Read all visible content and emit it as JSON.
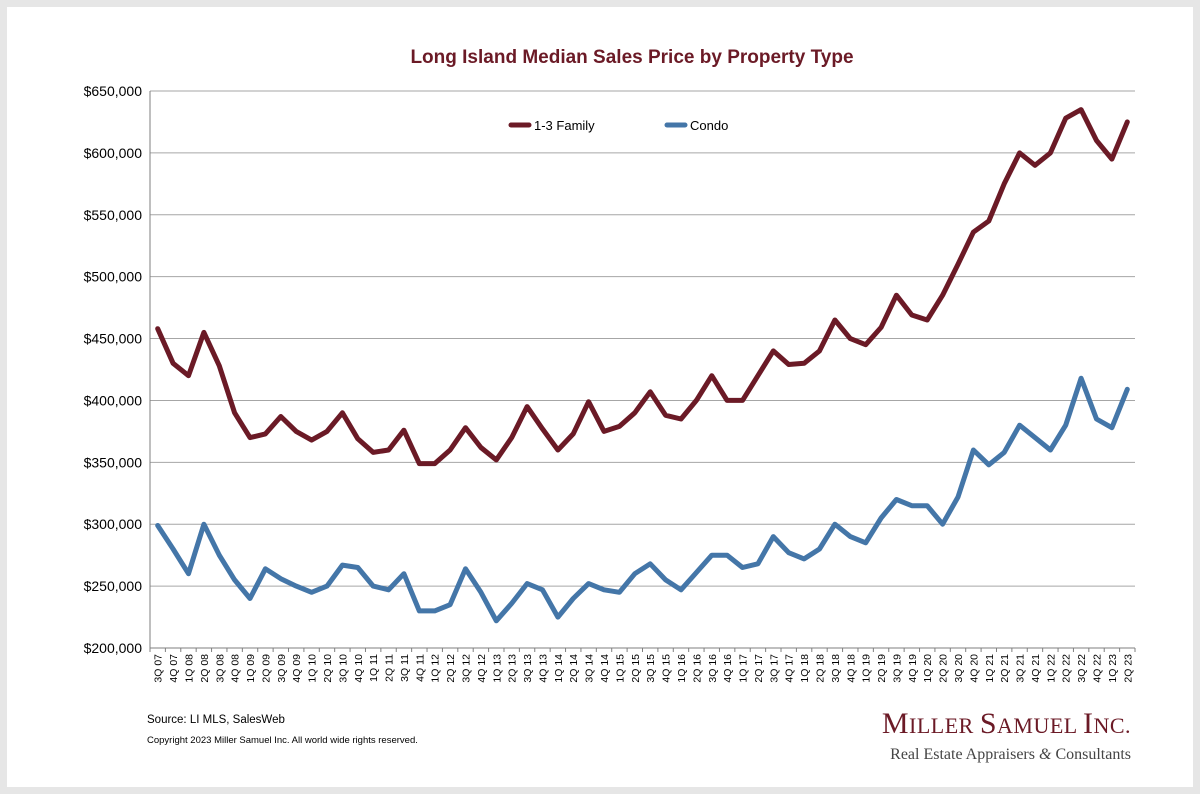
{
  "chart_data": {
    "type": "line",
    "title": "Long Island Median Sales Price by Property Type",
    "ylim": [
      200000,
      650000
    ],
    "yticks": [
      "$200,000",
      "$250,000",
      "$300,000",
      "$350,000",
      "$400,000",
      "$450,000",
      "$500,000",
      "$550,000",
      "$600,000",
      "$650,000"
    ],
    "categories": [
      "3Q 07",
      "4Q 07",
      "1Q 08",
      "2Q 08",
      "3Q 08",
      "4Q 08",
      "1Q 09",
      "2Q 09",
      "3Q 09",
      "4Q 09",
      "1Q 10",
      "2Q 10",
      "3Q 10",
      "4Q 10",
      "1Q 11",
      "2Q 11",
      "3Q 11",
      "4Q 11",
      "1Q 12",
      "2Q 12",
      "3Q 12",
      "4Q 12",
      "1Q 13",
      "2Q 13",
      "3Q 13",
      "4Q 13",
      "1Q 14",
      "2Q 14",
      "3Q 14",
      "4Q 14",
      "1Q 15",
      "2Q 15",
      "3Q 15",
      "4Q 15",
      "1Q 16",
      "2Q 16",
      "3Q 16",
      "4Q 16",
      "1Q 17",
      "2Q 17",
      "3Q 17",
      "4Q 17",
      "1Q 18",
      "2Q 18",
      "3Q 18",
      "4Q 18",
      "1Q 19",
      "2Q 19",
      "3Q 19",
      "4Q 19",
      "1Q 20",
      "2Q 20",
      "3Q 20",
      "4Q 20",
      "1Q 21",
      "2Q 21",
      "3Q 21",
      "4Q 21",
      "1Q 22",
      "2Q 22",
      "3Q 22",
      "4Q 22",
      "1Q 23",
      "2Q 23"
    ],
    "series": [
      {
        "name": "1-3 Family",
        "color": "#6b1a26",
        "values": [
          458000,
          430000,
          420000,
          455000,
          428000,
          390000,
          370000,
          373000,
          387000,
          375000,
          368000,
          375000,
          390000,
          369000,
          358000,
          360000,
          376000,
          349000,
          349000,
          360000,
          378000,
          362000,
          352000,
          370000,
          395000,
          377000,
          360000,
          373000,
          399000,
          375000,
          379000,
          390000,
          407000,
          388000,
          385000,
          400000,
          420000,
          400000,
          400000,
          420000,
          440000,
          429000,
          430000,
          440000,
          465000,
          450000,
          445000,
          459000,
          485000,
          469000,
          465000,
          485000,
          510000,
          536000,
          545000,
          575000,
          600000,
          590000,
          600000,
          628000,
          635000,
          610000,
          595000,
          625000
        ]
      },
      {
        "name": "Condo",
        "color": "#4476a8",
        "values": [
          299000,
          280000,
          260000,
          300000,
          275000,
          255000,
          240000,
          264000,
          256000,
          250000,
          245000,
          250000,
          267000,
          265000,
          250000,
          247000,
          260000,
          230000,
          230000,
          235000,
          264000,
          245000,
          222000,
          236000,
          252000,
          247000,
          225000,
          240000,
          252000,
          247000,
          245000,
          260000,
          268000,
          255000,
          247000,
          261000,
          275000,
          275000,
          265000,
          268000,
          290000,
          277000,
          272000,
          280000,
          300000,
          290000,
          285000,
          305000,
          320000,
          315000,
          315000,
          300000,
          322000,
          360000,
          348000,
          358000,
          380000,
          370000,
          360000,
          380000,
          418000,
          385000,
          378000,
          409000
        ]
      }
    ],
    "legend": "top-center",
    "grid": true
  },
  "footer": {
    "source": "Source:  LI MLS, SalesWeb",
    "copyright": "Copyright 2023 Miller Samuel Inc.  All world wide rights reserved."
  },
  "logo": {
    "name_first_letter": "M",
    "name_rest_1": "ILLER ",
    "name_second_letter": "S",
    "name_rest_2": "AMUEL ",
    "name_third_letter": "I",
    "name_rest_3": "NC.",
    "sub_before": "Real Estate Appraisers ",
    "sub_amp": "&",
    "sub_after": " Consultants"
  }
}
